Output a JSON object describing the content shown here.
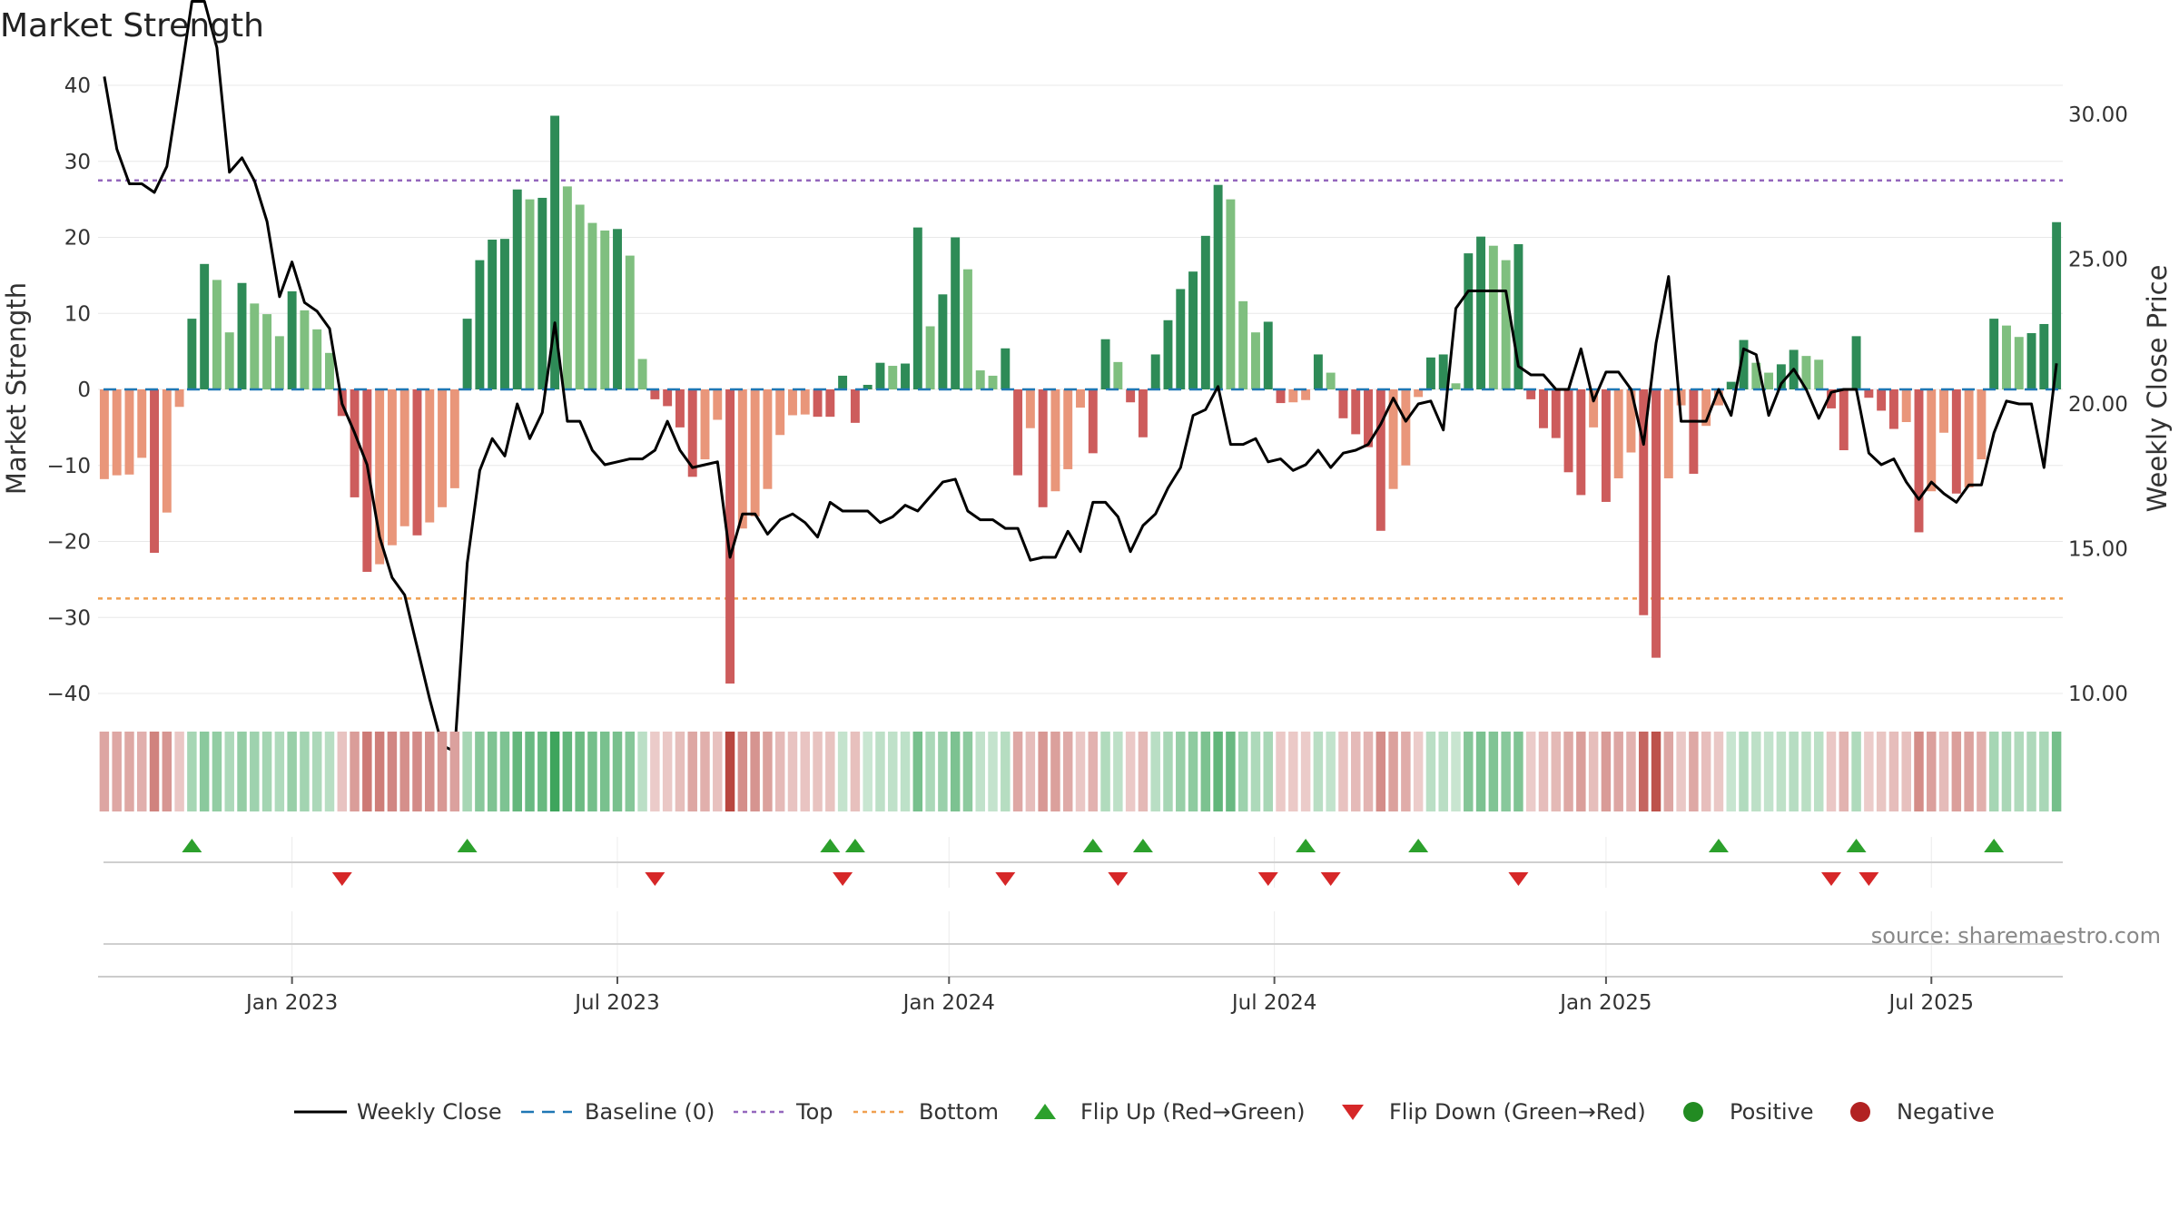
{
  "chart_data": {
    "type": "bar",
    "title": "Market Strength",
    "source": "source: sharemaestro.com",
    "ylabel_left": "Market Strength",
    "ylabel_right": "Weekly Close Price",
    "ylim_left": [
      -40,
      40
    ],
    "ylim_right": [
      10,
      31
    ],
    "y_ticks_left": [
      "40",
      "30",
      "20",
      "10",
      "0",
      "−10",
      "−20",
      "−30",
      "−40"
    ],
    "y_tick_values_left": [
      40,
      30,
      20,
      10,
      0,
      -10,
      -20,
      -30,
      -40
    ],
    "y_ticks_right": [
      "30.00",
      "25.00",
      "20.00",
      "15.00",
      "10.00"
    ],
    "y_tick_values_right": [
      30,
      25,
      20,
      15,
      10
    ],
    "x_ticks": [
      "Jan 2023",
      "Jul 2023",
      "Jan 2024",
      "Jul 2024",
      "Jan 2025",
      "Jul 2025"
    ],
    "x_tick_weeks": [
      15.5,
      41.5,
      68,
      94,
      120.5,
      146.5
    ],
    "top_level": 27.5,
    "bottom_level": -27.5,
    "strength": [
      -11.8,
      -11.3,
      -11.2,
      -9.0,
      -21.5,
      -16.2,
      -2.3,
      9.3,
      16.5,
      14.4,
      7.5,
      14.0,
      11.3,
      9.9,
      7.0,
      12.9,
      10.4,
      7.9,
      4.8,
      -3.5,
      -14.2,
      -24.0,
      -23.0,
      -20.5,
      -18.0,
      -19.2,
      -17.5,
      -15.5,
      -13.0,
      9.3,
      17.0,
      19.7,
      19.8,
      26.3,
      25.0,
      25.2,
      36.0,
      26.7,
      24.3,
      21.9,
      20.9,
      21.1,
      17.6,
      4.0,
      -1.3,
      -2.2,
      -5.0,
      -11.5,
      -9.2,
      -4.0,
      -38.7,
      -18.3,
      -16.7,
      -13.1,
      -6.0,
      -3.4,
      -3.3,
      -3.6,
      -3.6,
      1.8,
      -4.4,
      0.6,
      3.5,
      3.1,
      3.4,
      21.3,
      8.3,
      12.5,
      20.0,
      15.8,
      2.5,
      1.8,
      5.4,
      -11.3,
      -5.1,
      -15.5,
      -13.4,
      -10.5,
      -2.4,
      -8.4,
      6.6,
      3.6,
      -1.7,
      -6.3,
      4.6,
      9.1,
      13.2,
      15.5,
      20.2,
      26.9,
      25.0,
      11.6,
      7.5,
      8.9,
      -1.8,
      -1.7,
      -1.4,
      4.6,
      2.2,
      -3.8,
      -5.9,
      -7.6,
      -18.6,
      -13.1,
      -10.0,
      -1.0,
      4.2,
      4.6,
      0.8,
      17.9,
      20.1,
      18.9,
      17.0,
      19.1,
      -1.3,
      -5.1,
      -6.4,
      -10.9,
      -13.9,
      -5.0,
      -14.8,
      -11.7,
      -8.3,
      -29.7,
      -35.3,
      -11.7,
      -2.1,
      -11.1,
      -4.8,
      -2.1,
      1.0,
      6.5,
      3.5,
      2.2,
      3.3,
      5.2,
      4.4,
      3.9,
      -2.5,
      -8.0,
      7.0,
      -1.1,
      -2.8,
      -5.2,
      -4.3,
      -18.8,
      -13.4,
      -5.7,
      -13.7,
      -12.9,
      -9.2,
      9.3,
      8.4,
      6.9,
      7.4,
      8.6,
      22.0
    ],
    "weekly_close": [
      31.3,
      28.8,
      27.6,
      27.6,
      27.3,
      28.2,
      31.0,
      33.9,
      33.9,
      32.3,
      28.0,
      28.5,
      27.7,
      26.3,
      23.7,
      24.9,
      23.5,
      23.2,
      22.6,
      20.0,
      19.0,
      17.9,
      15.4,
      14.0,
      13.4,
      11.6,
      9.8,
      8.2,
      8.0,
      14.5,
      17.7,
      18.8,
      18.2,
      20.0,
      18.8,
      19.7,
      22.8,
      19.4,
      19.4,
      18.4,
      17.9,
      18.0,
      18.1,
      18.1,
      18.4,
      19.4,
      18.4,
      17.8,
      17.9,
      18.0,
      14.7,
      16.2,
      16.2,
      15.5,
      16.0,
      16.2,
      15.9,
      15.4,
      16.6,
      16.3,
      16.3,
      16.3,
      15.9,
      16.1,
      16.5,
      16.3,
      16.8,
      17.3,
      17.4,
      16.3,
      16.0,
      16.0,
      15.7,
      15.7,
      14.6,
      14.7,
      14.7,
      15.6,
      14.9,
      16.6,
      16.6,
      16.1,
      14.9,
      15.8,
      16.2,
      17.1,
      17.8,
      19.6,
      19.8,
      20.6,
      18.6,
      18.6,
      18.8,
      18.0,
      18.1,
      17.7,
      17.9,
      18.4,
      17.8,
      18.3,
      18.4,
      18.6,
      19.3,
      20.2,
      19.4,
      20.0,
      20.1,
      19.1,
      23.3,
      23.9,
      23.9,
      23.9,
      23.9,
      21.3,
      21.0,
      21.0,
      20.5,
      20.5,
      21.9,
      20.1,
      21.1,
      21.1,
      20.5,
      18.6,
      22.1,
      24.4,
      19.4,
      19.4,
      19.4,
      20.5,
      19.6,
      21.9,
      21.7,
      19.6,
      20.7,
      21.2,
      20.5,
      19.5,
      20.4,
      20.5,
      20.5,
      18.3,
      17.9,
      18.1,
      17.3,
      16.7,
      17.3,
      16.9,
      16.6,
      17.2,
      17.2,
      19.0,
      20.1,
      20.0,
      20.0,
      17.8,
      21.4
    ],
    "flip_up_weeks": [
      7,
      29,
      58,
      60,
      79,
      83,
      96,
      105,
      129,
      140,
      151
    ],
    "flip_down_weeks": [
      19,
      44,
      59,
      72,
      81,
      93,
      98,
      113,
      138,
      141
    ],
    "legend": {
      "weekly_close": "Weekly Close",
      "baseline": "Baseline (0)",
      "top": "Top",
      "bottom": "Bottom",
      "flip_up": "Flip Up (Red→Green)",
      "flip_down": "Flip Down (Green→Red)",
      "positive": "Positive",
      "negative": "Negative"
    },
    "colors": {
      "strong_green": "#2e8b57",
      "light_green": "#7fbf7f",
      "strong_red": "#cd5c5c",
      "light_red": "#e9967a",
      "line": "#000000",
      "baseline": "#1f77b4",
      "top": "#9467bd",
      "bottom": "#f0a050",
      "flip_up": "#2ca02c",
      "flip_down": "#d62728",
      "positive": "#228b22",
      "negative": "#b22222"
    }
  }
}
